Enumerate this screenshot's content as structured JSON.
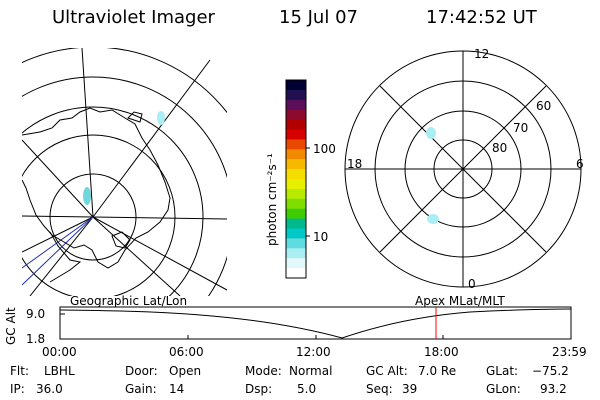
{
  "header": {
    "instrument": "Ultraviolet Imager",
    "date": "15 Jul 07",
    "time": "17:42:52 UT"
  },
  "colorbar": {
    "unit_label": "photon cm⁻²s⁻¹",
    "tick_labels": [
      "100",
      "10"
    ],
    "colors": [
      "#000033",
      "#20104f",
      "#5b0f5a",
      "#8b0a2d",
      "#b20000",
      "#d70000",
      "#e94a00",
      "#f08a00",
      "#f7b800",
      "#f6dd00",
      "#e8f000",
      "#b8ea00",
      "#80dd00",
      "#3fcc00",
      "#00b98c",
      "#00c7c8",
      "#5fdce0",
      "#a9eef2",
      "#e2f8fa",
      "#ffffff"
    ]
  },
  "maps": {
    "left_label": "Geographic Lat/Lon",
    "right_label": "Apex  MLat/MLT",
    "right_mlt_labels": [
      "12",
      "18",
      "6",
      "0"
    ],
    "right_lat_labels": [
      "60",
      "70",
      "80"
    ]
  },
  "timeline": {
    "ylabel": "GC Alt",
    "y_ticks": [
      "9.0",
      "1.8"
    ],
    "x_ticks": [
      "00:00",
      "06:00",
      "12:00",
      "18:00",
      "23:59"
    ],
    "current_time_marker": "17:42:52",
    "marker_color": "#ff0000"
  },
  "status": {
    "flt_label": "Flt:",
    "flt_value": "LBHL",
    "ip_label": "IP:",
    "ip_value": "36.0",
    "door_label": "Door:",
    "door_value": "Open",
    "gain_label": "Gain:",
    "gain_value": "14",
    "mode_label": "Mode:",
    "mode_value": "Normal",
    "dsp_label": "Dsp:",
    "dsp_value": "5.0",
    "gcalt_label": "GC Alt:",
    "gcalt_value": "7.0 Re",
    "seq_label": "Seq:",
    "seq_value": "39",
    "glat_label": "GLat:",
    "glat_value": "−75.2",
    "glon_label": "GLon:",
    "glon_value": "93.2"
  }
}
